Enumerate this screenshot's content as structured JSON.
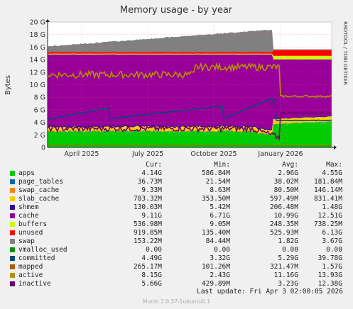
{
  "chart_data": {
    "type": "area",
    "title": "Memory usage - by year",
    "ylabel": "Bytes",
    "xlabel": "",
    "side_label": "RRDTOOL / TOBI OETIKER",
    "ylim": [
      0,
      20
    ],
    "y_unit": "G",
    "y_ticks": [
      "0",
      "2 G",
      "4 G",
      "6 G",
      "8 G",
      "10 G",
      "12 G",
      "14 G",
      "16 G",
      "18 G",
      "20 G"
    ],
    "x_ticks": [
      "April 2025",
      "July 2025",
      "October 2025",
      "January 2026"
    ],
    "grid": true,
    "legend_headers": {
      "cur": "Cur:",
      "min": "Min:",
      "avg": "Avg:",
      "max": "Max:"
    },
    "series": [
      {
        "name": "apps",
        "color": "#00cc00",
        "cur": "4.14G",
        "min": "586.84M",
        "avg": "2.96G",
        "max": "4.55G"
      },
      {
        "name": "page_tables",
        "color": "#0066b3",
        "cur": "36.73M",
        "min": "21.54M",
        "avg": "38.02M",
        "max": "181.84M"
      },
      {
        "name": "swap_cache",
        "color": "#ff8000",
        "cur": "9.33M",
        "min": "8.63M",
        "avg": "80.50M",
        "max": "146.14M"
      },
      {
        "name": "slab_cache",
        "color": "#ffcc00",
        "cur": "783.32M",
        "min": "353.50M",
        "avg": "597.49M",
        "max": "831.41M"
      },
      {
        "name": "shmem",
        "color": "#330099",
        "cur": "130.03M",
        "min": "5.42M",
        "avg": "206.48M",
        "max": "1.48G"
      },
      {
        "name": "cache",
        "color": "#990099",
        "cur": "9.11G",
        "min": "6.71G",
        "avg": "10.99G",
        "max": "12.51G"
      },
      {
        "name": "buffers",
        "color": "#ccff00",
        "cur": "536.98M",
        "min": "9.05M",
        "avg": "248.35M",
        "max": "738.25M"
      },
      {
        "name": "unused",
        "color": "#ff0000",
        "cur": "919.85M",
        "min": "135.40M",
        "avg": "525.93M",
        "max": "6.13G"
      },
      {
        "name": "swap",
        "color": "#808080",
        "cur": "153.22M",
        "min": "84.44M",
        "avg": "1.82G",
        "max": "3.67G"
      },
      {
        "name": "vmalloc_used",
        "color": "#008f00",
        "cur": "0.00",
        "min": "0.00",
        "avg": "0.00",
        "max": "0.00"
      },
      {
        "name": "committed",
        "color": "#00487d",
        "cur": "4.49G",
        "min": "3.32G",
        "avg": "5.29G",
        "max": "39.78G"
      },
      {
        "name": "mapped",
        "color": "#b35a00",
        "cur": "265.17M",
        "min": "101.26M",
        "avg": "321.47M",
        "max": "1.57G"
      },
      {
        "name": "active",
        "color": "#b38f00",
        "cur": "8.15G",
        "min": "2.43G",
        "avg": "11.16G",
        "max": "13.93G"
      },
      {
        "name": "inactive",
        "color": "#6b006b",
        "cur": "5.66G",
        "min": "429.89M",
        "avg": "3.23G",
        "max": "12.38G"
      }
    ],
    "last_update": "Last update: Fri Apr  3 02:00:05 2026",
    "version": "Munin 2.0.37-1ubuntu0.1"
  }
}
